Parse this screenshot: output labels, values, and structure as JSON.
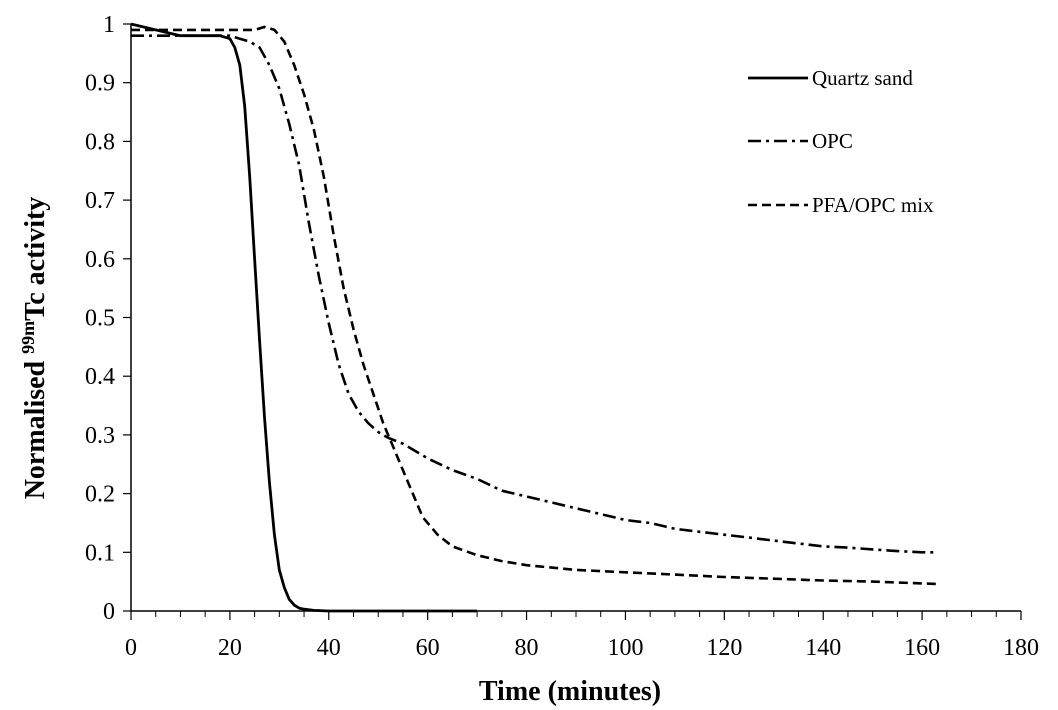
{
  "chart_data": {
    "type": "line",
    "xlabel": "Time (minutes)",
    "ylabel_prefix": "Normalised ",
    "ylabel_superscript": "99m",
    "ylabel_suffix": "Tc activity",
    "xlim": [
      0,
      180
    ],
    "ylim": [
      0,
      1
    ],
    "x_ticks": [
      "0",
      "20",
      "40",
      "60",
      "80",
      "100",
      "120",
      "140",
      "160",
      "180"
    ],
    "y_ticks": [
      "0",
      "0.1",
      "0.2",
      "0.3",
      "0.4",
      "0.5",
      "0.6",
      "0.7",
      "0.8",
      "0.9",
      "1"
    ],
    "x_tick_values": [
      0,
      20,
      40,
      60,
      80,
      100,
      120,
      140,
      160,
      180
    ],
    "y_tick_values": [
      0,
      0.1,
      0.2,
      0.3,
      0.4,
      0.5,
      0.6,
      0.7,
      0.8,
      0.9,
      1
    ],
    "grid": false,
    "legend_position": "top-right",
    "series": [
      {
        "name": "Quartz sand",
        "style": "solid",
        "color": "#000000",
        "x": [
          0,
          5,
          10,
          15,
          18,
          20,
          21,
          22,
          23,
          24,
          25,
          26,
          27,
          28,
          29,
          30,
          31,
          32,
          33,
          34,
          35,
          36,
          37,
          40,
          50,
          60,
          70
        ],
        "y": [
          1.0,
          0.99,
          0.98,
          0.98,
          0.98,
          0.975,
          0.96,
          0.93,
          0.86,
          0.74,
          0.6,
          0.46,
          0.33,
          0.22,
          0.13,
          0.07,
          0.04,
          0.02,
          0.01,
          0.005,
          0.003,
          0.002,
          0.001,
          0.0,
          0.0,
          0.0,
          0.0
        ]
      },
      {
        "name": "OPC",
        "style": "dashdot",
        "color": "#000000",
        "x": [
          0,
          5,
          10,
          15,
          20,
          22,
          24,
          26,
          28,
          30,
          32,
          34,
          36,
          38,
          40,
          42,
          44,
          46,
          48,
          50,
          52,
          55,
          58,
          60,
          65,
          70,
          75,
          80,
          85,
          90,
          95,
          100,
          105,
          110,
          115,
          120,
          125,
          130,
          135,
          140,
          145,
          150,
          155,
          160,
          163
        ],
        "y": [
          0.98,
          0.98,
          0.98,
          0.98,
          0.98,
          0.975,
          0.97,
          0.96,
          0.93,
          0.89,
          0.83,
          0.76,
          0.66,
          0.57,
          0.49,
          0.42,
          0.37,
          0.34,
          0.32,
          0.305,
          0.295,
          0.285,
          0.27,
          0.26,
          0.24,
          0.225,
          0.205,
          0.195,
          0.185,
          0.175,
          0.165,
          0.155,
          0.15,
          0.14,
          0.135,
          0.13,
          0.125,
          0.12,
          0.115,
          0.11,
          0.108,
          0.105,
          0.102,
          0.1,
          0.1
        ]
      },
      {
        "name": "PFA/OPC mix",
        "style": "dashed",
        "color": "#000000",
        "x": [
          0,
          5,
          10,
          15,
          20,
          25,
          27,
          29,
          31,
          33,
          35,
          37,
          39,
          41,
          43,
          45,
          47,
          49,
          51,
          53,
          55,
          57,
          59,
          62,
          65,
          70,
          75,
          80,
          90,
          100,
          110,
          120,
          130,
          140,
          150,
          160,
          163
        ],
        "y": [
          0.99,
          0.99,
          0.99,
          0.99,
          0.99,
          0.99,
          0.995,
          0.99,
          0.97,
          0.93,
          0.88,
          0.82,
          0.74,
          0.64,
          0.55,
          0.48,
          0.42,
          0.37,
          0.32,
          0.28,
          0.24,
          0.2,
          0.16,
          0.13,
          0.11,
          0.095,
          0.085,
          0.078,
          0.07,
          0.066,
          0.062,
          0.058,
          0.055,
          0.052,
          0.05,
          0.047,
          0.046
        ]
      }
    ]
  }
}
